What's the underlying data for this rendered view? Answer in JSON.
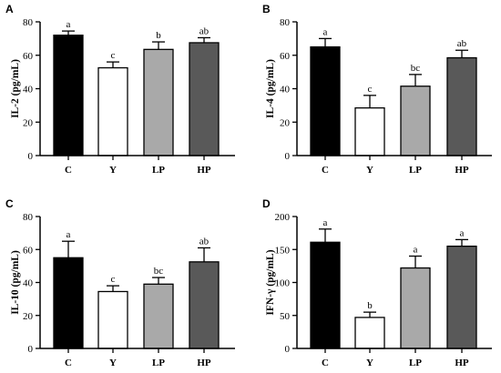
{
  "chart_data": [
    {
      "type": "bar",
      "panel_label": "A",
      "ylabel": "IL-2 (pg/mL)",
      "categories": [
        "C",
        "Y",
        "LP",
        "HP"
      ],
      "values": [
        72,
        52.5,
        63.5,
        67.5
      ],
      "errors": [
        2.5,
        3.5,
        4.5,
        3
      ],
      "letters": [
        "a",
        "c",
        "b",
        "ab"
      ],
      "ylim": [
        0,
        80
      ],
      "yticks": [
        0,
        20,
        40,
        60,
        80
      ],
      "colors": [
        "#000000",
        "#ffffff",
        "#a9a9a9",
        "#595959"
      ]
    },
    {
      "type": "bar",
      "panel_label": "B",
      "ylabel": "IL-4 (pg/mL)",
      "categories": [
        "C",
        "Y",
        "LP",
        "HP"
      ],
      "values": [
        65,
        28.5,
        41.5,
        58.5
      ],
      "errors": [
        5,
        7.5,
        7,
        4.5
      ],
      "letters": [
        "a",
        "c",
        "bc",
        "ab"
      ],
      "ylim": [
        0,
        80
      ],
      "yticks": [
        0,
        20,
        40,
        60,
        80
      ],
      "colors": [
        "#000000",
        "#ffffff",
        "#a9a9a9",
        "#595959"
      ]
    },
    {
      "type": "bar",
      "panel_label": "C",
      "ylabel": "IL-10 (pg/mL)",
      "categories": [
        "C",
        "Y",
        "LP",
        "HP"
      ],
      "values": [
        55,
        34.5,
        39,
        52.5
      ],
      "errors": [
        10,
        3.5,
        4,
        8.5
      ],
      "letters": [
        "a",
        "c",
        "bc",
        "ab"
      ],
      "ylim": [
        0,
        80
      ],
      "yticks": [
        0,
        20,
        40,
        60,
        80
      ],
      "colors": [
        "#000000",
        "#ffffff",
        "#a9a9a9",
        "#595959"
      ]
    },
    {
      "type": "bar",
      "panel_label": "D",
      "ylabel": "IFN-γ (pg/mL)",
      "categories": [
        "C",
        "Y",
        "LP",
        "HP"
      ],
      "values": [
        161,
        47,
        122,
        155
      ],
      "errors": [
        20,
        8,
        18,
        10
      ],
      "letters": [
        "a",
        "b",
        "a",
        "a"
      ],
      "ylim": [
        0,
        200
      ],
      "yticks": [
        0,
        50,
        100,
        150,
        200
      ],
      "colors": [
        "#000000",
        "#ffffff",
        "#a9a9a9",
        "#595959"
      ]
    }
  ]
}
